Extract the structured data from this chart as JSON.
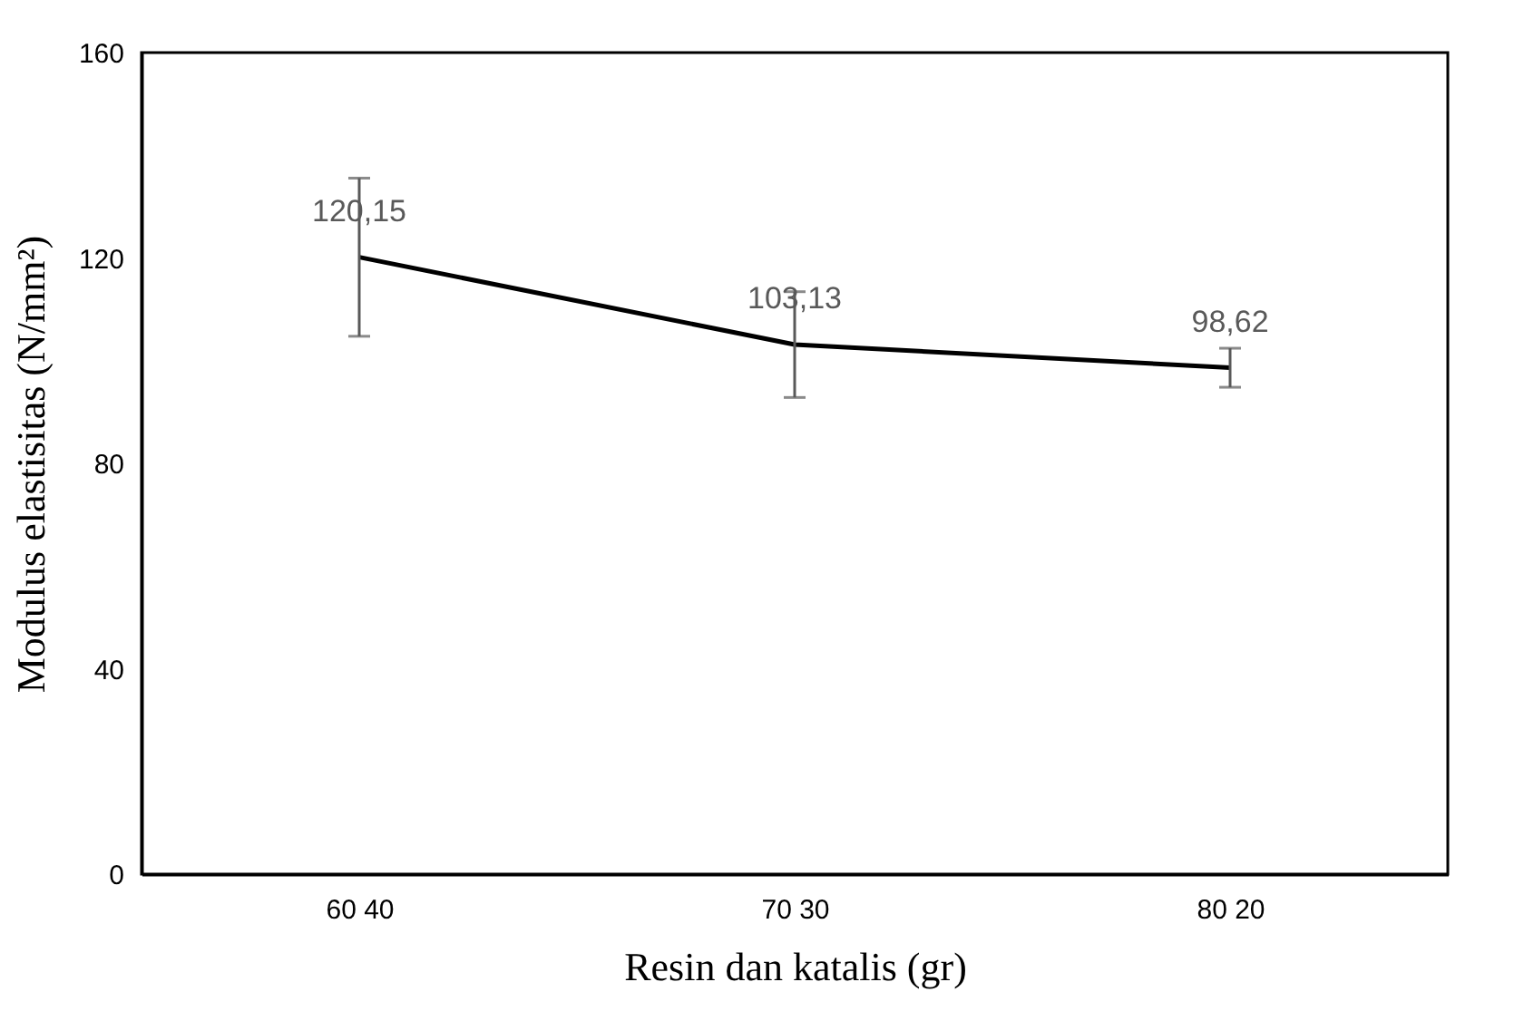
{
  "chart_data": {
    "type": "line",
    "xlabel": "Resin dan katalis (gr)",
    "ylabel": "Modulus elastisitas (N/mm²)",
    "categories": [
      "60 40",
      "70 30",
      "80 20"
    ],
    "series": [
      {
        "color": "#000000",
        "values": [
          120.15,
          103.13,
          98.62
        ],
        "errors": [
          15.4,
          10.3,
          3.8
        ],
        "value_labels": [
          "120,15",
          "103,13",
          "98,62"
        ]
      }
    ],
    "ylim": [
      0,
      160
    ],
    "yticks": [
      0,
      40,
      80,
      120,
      160
    ],
    "grid": false,
    "marker": "none",
    "line_style": "solid"
  }
}
